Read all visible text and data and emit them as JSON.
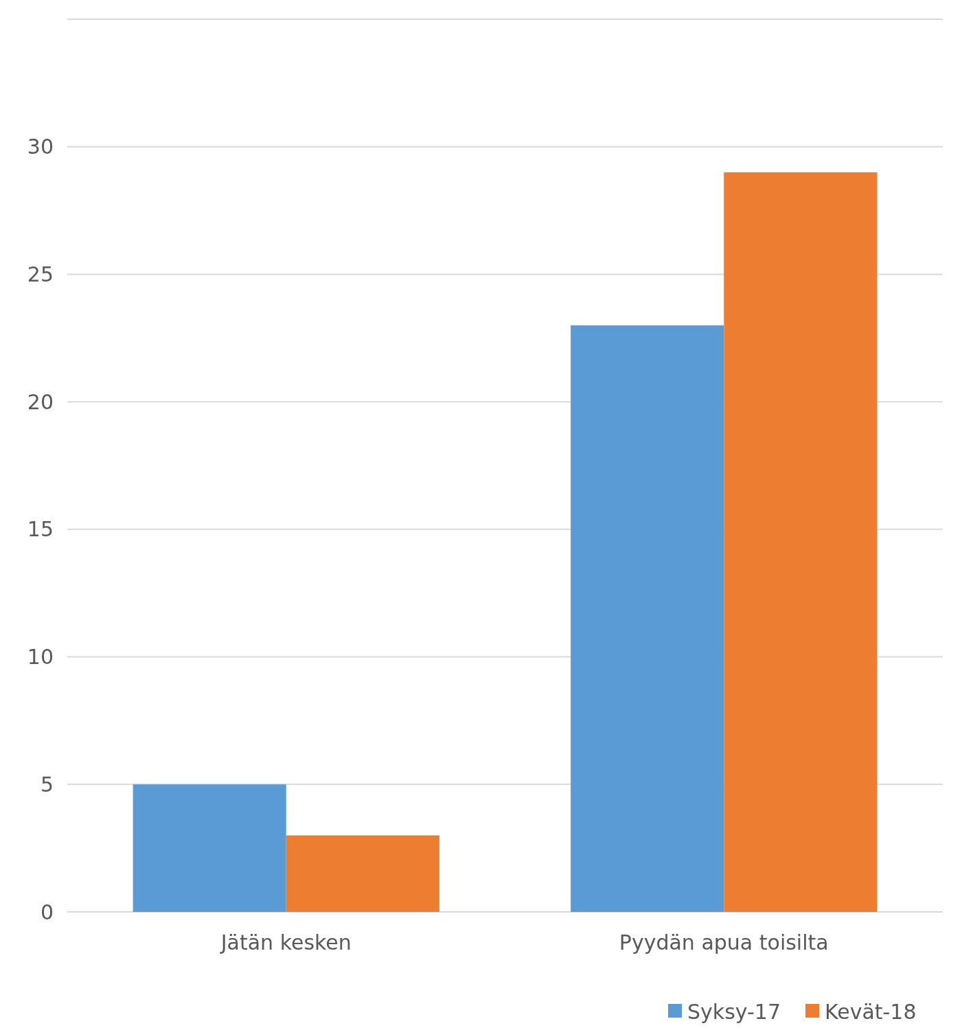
{
  "chart_data": {
    "type": "bar",
    "categories": [
      "Jätän kesken",
      "Pyydän apua toisilta"
    ],
    "series": [
      {
        "name": "Syksy-17",
        "color": "#5b9bd5",
        "values": [
          5,
          23
        ]
      },
      {
        "name": "Kevät-18",
        "color": "#ed7d31",
        "values": [
          3,
          29
        ]
      }
    ],
    "ylim": [
      0,
      35
    ],
    "yticks": [
      0,
      5,
      10,
      15,
      20,
      25,
      30,
      {
        "value": 35,
        "label": null
      }
    ],
    "grid": "y",
    "legend": "bottom right"
  }
}
